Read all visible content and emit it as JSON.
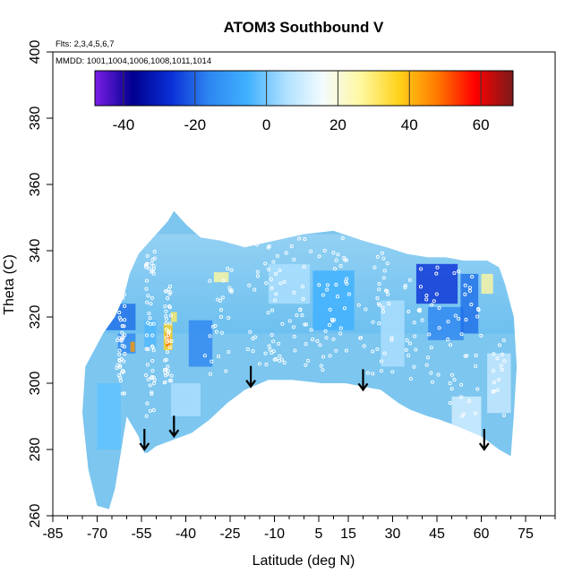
{
  "chart_data": {
    "type": "heatmap",
    "title": "ATOM3 Southbound V",
    "annotations": {
      "flights": "Flts: 2,3,4,5,6,7",
      "mmdd": "MMDD: 1001,1004,1006,1008,1011,1014"
    },
    "xlabel": "Latitude (deg N)",
    "ylabel": "Theta (C)",
    "xlim": [
      -85,
      85
    ],
    "ylim": [
      260,
      400
    ],
    "x_ticks": [
      -85,
      -70,
      -55,
      -40,
      -25,
      -10,
      5,
      15,
      30,
      45,
      60,
      75
    ],
    "y_ticks": [
      260,
      280,
      300,
      320,
      340,
      360,
      380,
      400
    ],
    "colorbar": {
      "range": [
        -48,
        69
      ],
      "ticks": [
        -40,
        -20,
        0,
        20,
        40,
        60
      ],
      "colors": [
        "#7a1ee6",
        "#00008f",
        "#0a2fd6",
        "#2e86f0",
        "#3fb0ff",
        "#aee0ff",
        "#f4fbff",
        "#fff8a0",
        "#ffd21a",
        "#ff7a00",
        "#ff0000",
        "#7a1a1a"
      ]
    },
    "tropopause_arrows": [
      {
        "lat": -54,
        "theta": 280
      },
      {
        "lat": -44,
        "theta": 284
      },
      {
        "lat": -18,
        "theta": 299
      },
      {
        "lat": 20,
        "theta": 298
      },
      {
        "lat": 61,
        "theta": 280
      }
    ],
    "colors": {
      "background_field": "#7cc6ef",
      "observation_points": "#ffffff",
      "arrows": "#000000"
    }
  }
}
